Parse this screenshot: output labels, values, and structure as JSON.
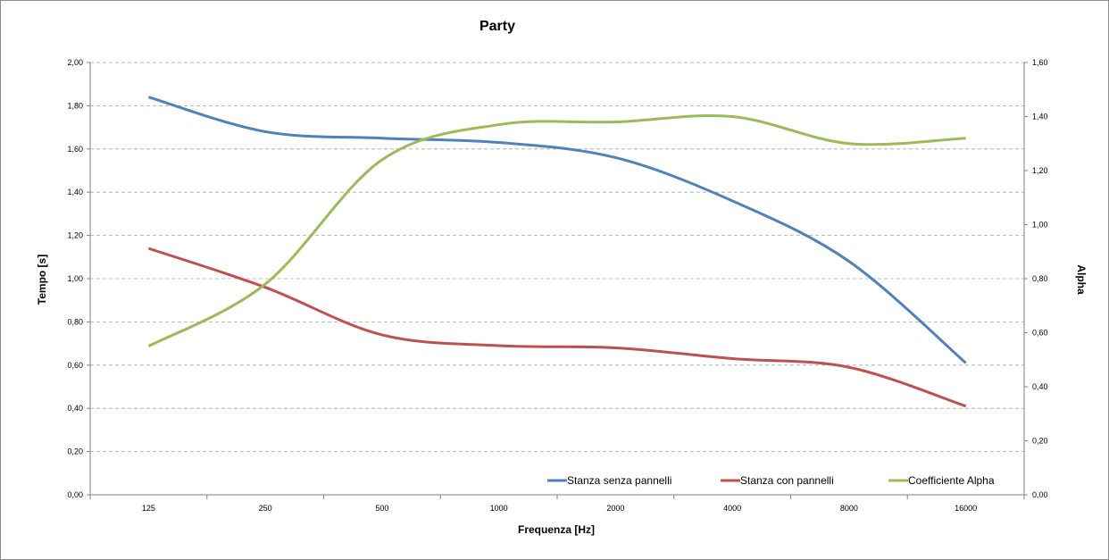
{
  "chart_data": {
    "type": "line",
    "title": "Party",
    "xlabel": "Frequenza [Hz]",
    "ylabel": "Tempo [s]",
    "y2label": "Alpha",
    "categories": [
      "125",
      "250",
      "500",
      "1000",
      "2000",
      "4000",
      "8000",
      "16000"
    ],
    "ylim": [
      0,
      2
    ],
    "y2lim": [
      0,
      1.6
    ],
    "yticks": [
      "0,00",
      "0,20",
      "0,40",
      "0,60",
      "0,80",
      "1,00",
      "1,20",
      "1,40",
      "1,60",
      "1,80",
      "2,00"
    ],
    "y2ticks": [
      "0,00",
      "0,20",
      "0,40",
      "0,60",
      "0,80",
      "1,00",
      "1,20",
      "1,40",
      "1,60"
    ],
    "grid": true,
    "legend_position": "bottom-right",
    "series": [
      {
        "name": "Stanza senza pannelli",
        "axis": "left",
        "color": "#4f81bd",
        "values": [
          1.84,
          1.68,
          1.65,
          1.63,
          1.56,
          1.36,
          1.08,
          0.61
        ]
      },
      {
        "name": "Stanza con pannelli",
        "axis": "left",
        "color": "#c0504d",
        "values": [
          1.14,
          0.96,
          0.74,
          0.69,
          0.68,
          0.63,
          0.59,
          0.41
        ]
      },
      {
        "name": "Coefficiente Alpha",
        "axis": "right",
        "color": "#9bbb59",
        "values": [
          0.55,
          0.78,
          1.24,
          1.37,
          1.38,
          1.4,
          1.3,
          1.32
        ]
      }
    ]
  }
}
